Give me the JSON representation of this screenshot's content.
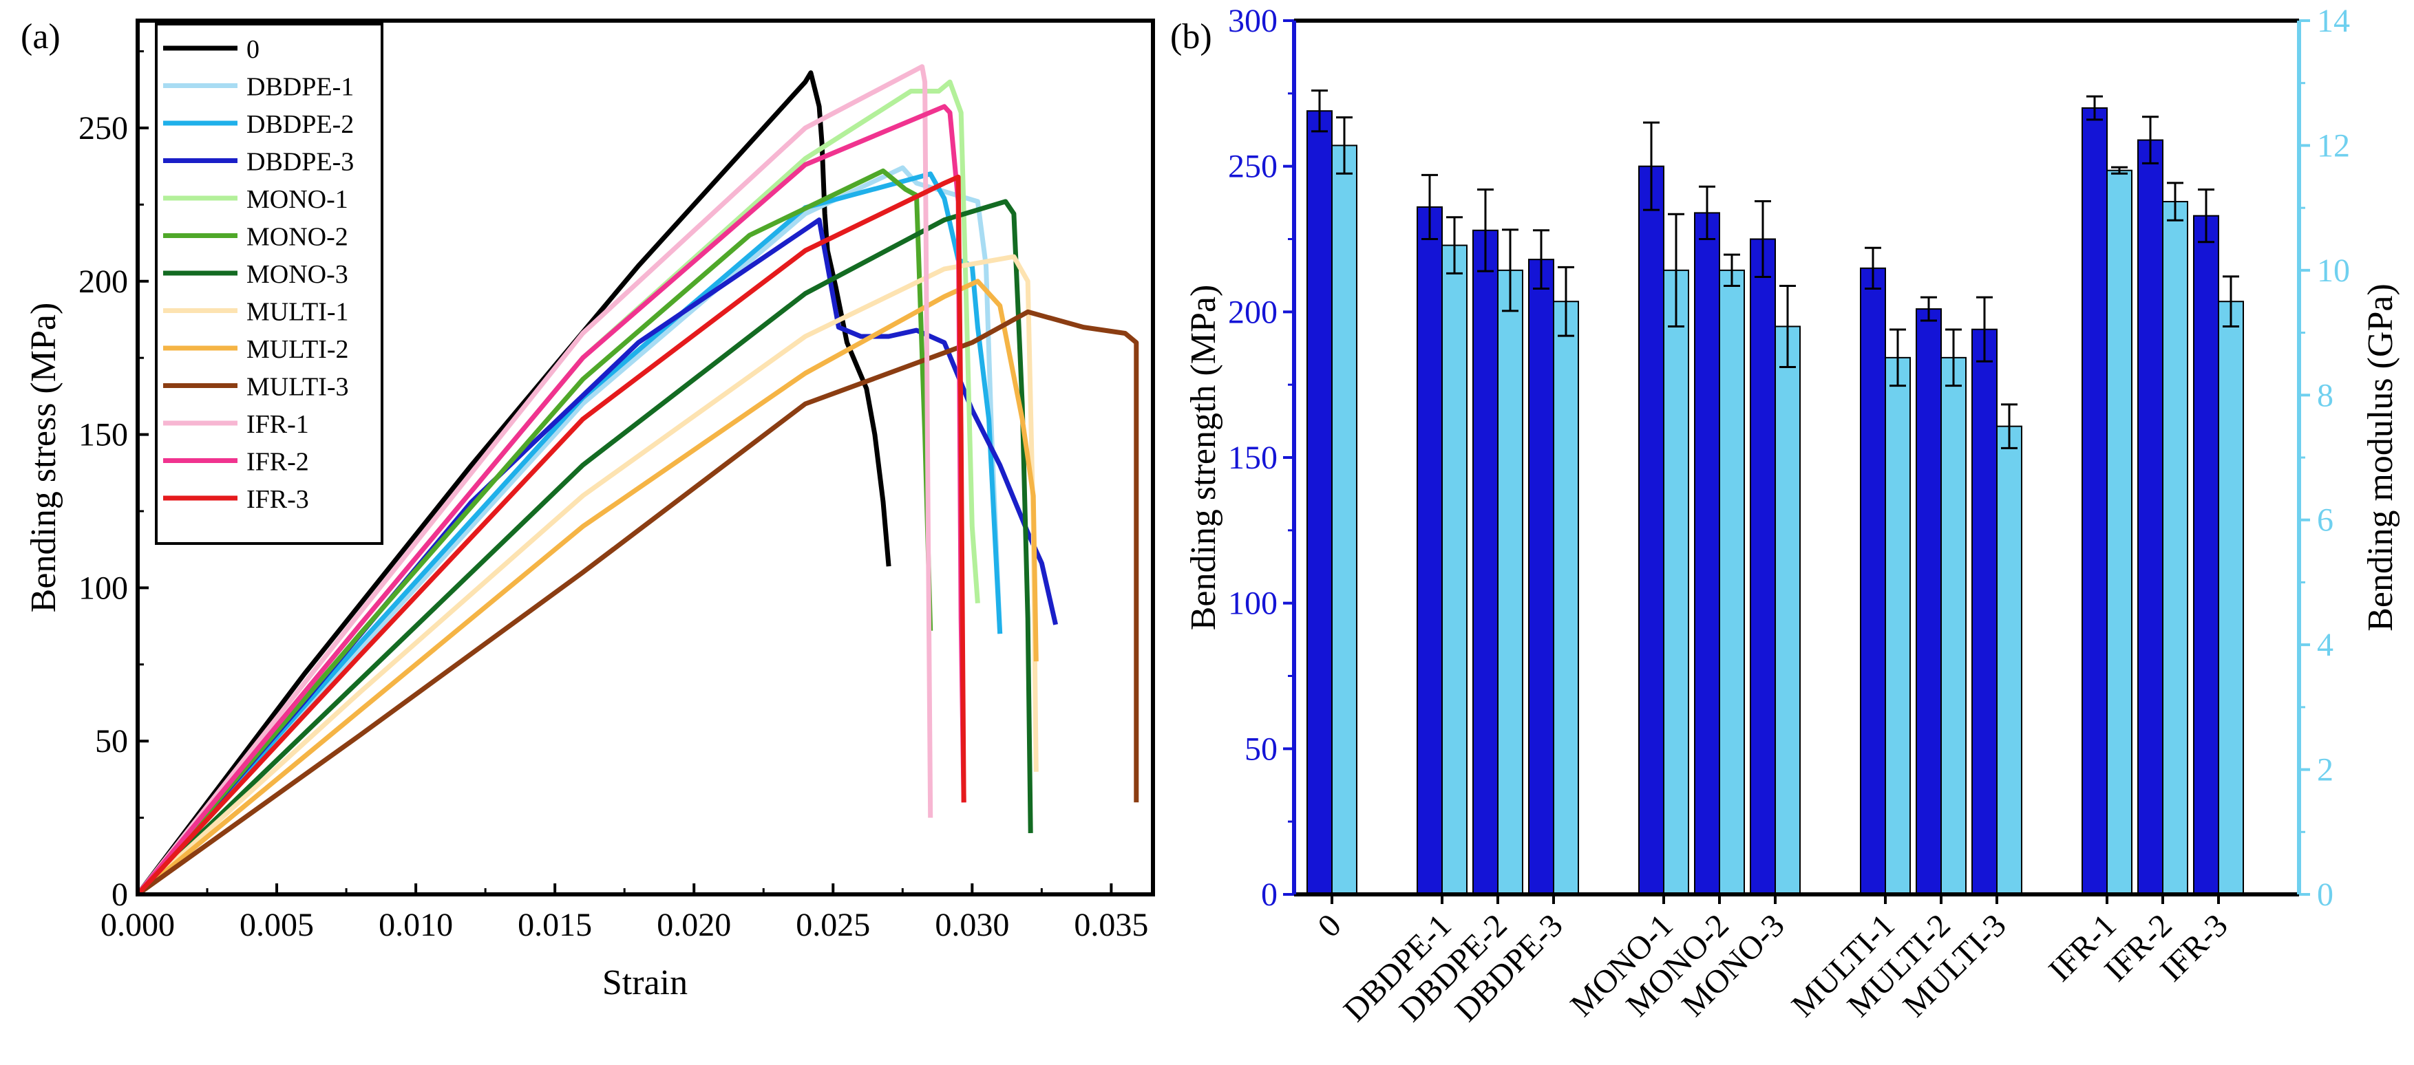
{
  "panel_a": {
    "label": "(a)",
    "xlabel": "Strain",
    "ylabel": "Bending stress (MPa)",
    "xticks": [
      "0.000",
      "0.005",
      "0.010",
      "0.015",
      "0.020",
      "0.025",
      "0.030",
      "0.035"
    ],
    "yticks": [
      "0",
      "50",
      "100",
      "150",
      "200",
      "250"
    ]
  },
  "panel_b": {
    "label": "(b)",
    "ylabel_left": "Bending strength (MPa)",
    "ylabel_right": "Bending modulus (GPa)",
    "yticks_left": [
      "0",
      "50",
      "100",
      "150",
      "200",
      "250",
      "300"
    ],
    "yticks_right": [
      "0",
      "2",
      "4",
      "6",
      "8",
      "10",
      "12",
      "14"
    ]
  },
  "chart_data": [
    {
      "type": "line",
      "panel": "(a)",
      "xlabel": "Strain",
      "ylabel": "Bending stress (MPa)",
      "xlim": [
        0,
        0.0365
      ],
      "ylim": [
        0,
        285
      ],
      "grid": false,
      "legend_position": "top-left",
      "series": [
        {
          "name": "0",
          "color": "#000000",
          "points": [
            [
              0,
              0
            ],
            [
              0.006,
              72
            ],
            [
              0.012,
              140
            ],
            [
              0.018,
              205
            ],
            [
              0.024,
              265
            ],
            [
              0.0242,
              268
            ],
            [
              0.0245,
              257
            ],
            [
              0.0246,
              245
            ],
            [
              0.0247,
              222
            ],
            [
              0.0248,
              210
            ],
            [
              0.0251,
              198
            ],
            [
              0.0255,
              180
            ],
            [
              0.0262,
              165
            ],
            [
              0.0265,
              150
            ],
            [
              0.0268,
              128
            ],
            [
              0.027,
              107
            ]
          ]
        },
        {
          "name": "DBDPE-1",
          "color": "#a8dcf3",
          "points": [
            [
              0,
              0
            ],
            [
              0.008,
              80
            ],
            [
              0.016,
              160
            ],
            [
              0.024,
              222
            ],
            [
              0.0275,
              237
            ],
            [
              0.028,
              232
            ],
            [
              0.0302,
              226
            ],
            [
              0.0305,
              205
            ],
            [
              0.0307,
              150
            ],
            [
              0.031,
              85
            ]
          ]
        },
        {
          "name": "DBDPE-2",
          "color": "#1fb0ea",
          "points": [
            [
              0,
              0
            ],
            [
              0.008,
              82
            ],
            [
              0.016,
              162
            ],
            [
              0.024,
              224
            ],
            [
              0.0285,
              235
            ],
            [
              0.029,
              227
            ],
            [
              0.0295,
              207
            ],
            [
              0.03,
              205
            ],
            [
              0.0302,
              185
            ],
            [
              0.0306,
              155
            ],
            [
              0.031,
              85
            ]
          ]
        },
        {
          "name": "DBDPE-3",
          "color": "#1a1fc8",
          "points": [
            [
              0,
              0
            ],
            [
              0.006,
              63
            ],
            [
              0.012,
              128
            ],
            [
              0.018,
              180
            ],
            [
              0.0245,
              220
            ],
            [
              0.0247,
              210
            ],
            [
              0.0252,
              185
            ],
            [
              0.026,
              182
            ],
            [
              0.027,
              182
            ],
            [
              0.028,
              184
            ],
            [
              0.029,
              180
            ],
            [
              0.03,
              158
            ],
            [
              0.031,
              140
            ],
            [
              0.032,
              118
            ],
            [
              0.0325,
              108
            ],
            [
              0.033,
              88
            ]
          ]
        },
        {
          "name": "MONO-1",
          "color": "#b3f09a",
          "points": [
            [
              0,
              0
            ],
            [
              0.008,
              88
            ],
            [
              0.016,
              175
            ],
            [
              0.024,
              240
            ],
            [
              0.0278,
              262
            ],
            [
              0.0288,
              262
            ],
            [
              0.0292,
              265
            ],
            [
              0.0296,
              255
            ],
            [
              0.0298,
              190
            ],
            [
              0.03,
              120
            ],
            [
              0.0302,
              95
            ]
          ]
        },
        {
          "name": "MONO-2",
          "color": "#4fa829",
          "points": [
            [
              0,
              0
            ],
            [
              0.008,
              85
            ],
            [
              0.016,
              168
            ],
            [
              0.022,
              215
            ],
            [
              0.0268,
              236
            ],
            [
              0.0276,
              230
            ],
            [
              0.028,
              228
            ],
            [
              0.0283,
              150
            ],
            [
              0.0285,
              86
            ]
          ]
        },
        {
          "name": "MONO-3",
          "color": "#136b22",
          "points": [
            [
              0,
              0
            ],
            [
              0.008,
              70
            ],
            [
              0.016,
              140
            ],
            [
              0.024,
              196
            ],
            [
              0.029,
              220
            ],
            [
              0.0312,
              226
            ],
            [
              0.0315,
              222
            ],
            [
              0.0318,
              160
            ],
            [
              0.032,
              90
            ],
            [
              0.0321,
              20
            ]
          ]
        },
        {
          "name": "MULTI-1",
          "color": "#fde3b1",
          "points": [
            [
              0,
              0
            ],
            [
              0.008,
              66
            ],
            [
              0.016,
              130
            ],
            [
              0.024,
              182
            ],
            [
              0.029,
              204
            ],
            [
              0.0315,
              208
            ],
            [
              0.032,
              200
            ],
            [
              0.0322,
              120
            ],
            [
              0.0323,
              40
            ]
          ]
        },
        {
          "name": "MULTI-2",
          "color": "#f5b445",
          "points": [
            [
              0,
              0
            ],
            [
              0.008,
              60
            ],
            [
              0.016,
              120
            ],
            [
              0.024,
              170
            ],
            [
              0.029,
              195
            ],
            [
              0.0302,
              200
            ],
            [
              0.031,
              192
            ],
            [
              0.0318,
              155
            ],
            [
              0.0322,
              130
            ],
            [
              0.0323,
              76
            ]
          ]
        },
        {
          "name": "MULTI-3",
          "color": "#8b3d12",
          "points": [
            [
              0,
              0
            ],
            [
              0.008,
              52
            ],
            [
              0.016,
              105
            ],
            [
              0.024,
              160
            ],
            [
              0.03,
              180
            ],
            [
              0.032,
              190
            ],
            [
              0.034,
              185
            ],
            [
              0.0355,
              183
            ],
            [
              0.0359,
              180
            ],
            [
              0.0359,
              30
            ]
          ]
        },
        {
          "name": "IFR-1",
          "color": "#f7b6d2",
          "points": [
            [
              0,
              0
            ],
            [
              0.008,
              92
            ],
            [
              0.016,
              183
            ],
            [
              0.024,
              250
            ],
            [
              0.0282,
              270
            ],
            [
              0.0283,
              265
            ],
            [
              0.0284,
              140
            ],
            [
              0.0285,
              25
            ]
          ]
        },
        {
          "name": "IFR-2",
          "color": "#f0338f",
          "points": [
            [
              0,
              0
            ],
            [
              0.008,
              88
            ],
            [
              0.016,
              175
            ],
            [
              0.024,
              238
            ],
            [
              0.029,
              257
            ],
            [
              0.0292,
              255
            ],
            [
              0.0295,
              226
            ],
            [
              0.0296,
              90
            ],
            [
              0.0297,
              30
            ]
          ]
        },
        {
          "name": "IFR-3",
          "color": "#e51a1c",
          "points": [
            [
              0,
              0
            ],
            [
              0.008,
              78
            ],
            [
              0.016,
              155
            ],
            [
              0.024,
              210
            ],
            [
              0.029,
              232
            ],
            [
              0.0295,
              234
            ],
            [
              0.0296,
              150
            ],
            [
              0.0297,
              30
            ]
          ]
        }
      ]
    },
    {
      "type": "bar",
      "panel": "(b)",
      "ylabel": "Bending strength (MPa)",
      "ylabel_right": "Bending modulus (GPa)",
      "ylim": [
        0,
        300
      ],
      "ylim_right": [
        0,
        14
      ],
      "grid": false,
      "groups": [
        [
          "0"
        ],
        [
          "DBDPE-1",
          "DBDPE-2",
          "DBDPE-3"
        ],
        [
          "MONO-1",
          "MONO-2",
          "MONO-3"
        ],
        [
          "MULTI-1",
          "MULTI-2",
          "MULTI-3"
        ],
        [
          "IFR-1",
          "IFR-2",
          "IFR-3"
        ]
      ],
      "categories": [
        "0",
        "DBDPE-1",
        "DBDPE-2",
        "DBDPE-3",
        "MONO-1",
        "MONO-2",
        "MONO-3",
        "MULTI-1",
        "MULTI-2",
        "MULTI-3",
        "IFR-1",
        "IFR-2",
        "IFR-3"
      ],
      "series": [
        {
          "axis": "left",
          "color": "#1414d6",
          "values": [
            269,
            236,
            228,
            218,
            250,
            234,
            225,
            215,
            201,
            194,
            270,
            259,
            233
          ],
          "errors": [
            7,
            11,
            14,
            10,
            15,
            9,
            13,
            7,
            4,
            11,
            4,
            8,
            9
          ]
        },
        {
          "axis": "right",
          "color": "#6fd0ef",
          "values": [
            12.0,
            10.4,
            10.0,
            9.5,
            10.0,
            10.0,
            9.1,
            8.6,
            8.6,
            7.5,
            11.6,
            11.1,
            9.5
          ],
          "errors": [
            0.45,
            0.45,
            0.65,
            0.55,
            0.9,
            0.25,
            0.65,
            0.45,
            0.45,
            0.35,
            0.05,
            0.3,
            0.4
          ]
        }
      ]
    }
  ]
}
